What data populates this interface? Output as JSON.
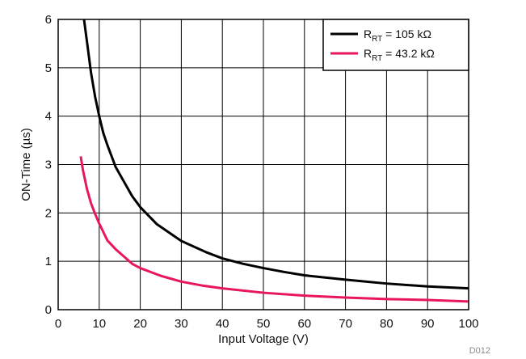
{
  "chart_data": {
    "type": "line",
    "xlabel": "Input Voltage (V)",
    "ylabel": "ON-Time (µs)",
    "xlim": [
      0,
      100
    ],
    "ylim": [
      0,
      6
    ],
    "x_ticks": [
      0,
      10,
      20,
      30,
      40,
      50,
      60,
      70,
      80,
      90,
      100
    ],
    "y_ticks": [
      0,
      1,
      2,
      3,
      4,
      5,
      6
    ],
    "grid": true,
    "legend_position": "top-right",
    "series": [
      {
        "name": "R_RT = 105 kΩ",
        "legend": {
          "main": "R",
          "sub": "RT",
          "rest": " = 105 kΩ"
        },
        "color": "#000000",
        "x": [
          6.3,
          7,
          8,
          9,
          10,
          11,
          12,
          14,
          16,
          18,
          20,
          24,
          30,
          36,
          40,
          45,
          50,
          55,
          60,
          70,
          80,
          90,
          100
        ],
        "y": [
          6.0,
          5.55,
          4.9,
          4.4,
          4.0,
          3.65,
          3.4,
          2.95,
          2.65,
          2.35,
          2.12,
          1.77,
          1.42,
          1.19,
          1.06,
          0.95,
          0.86,
          0.78,
          0.71,
          0.62,
          0.54,
          0.48,
          0.44
        ]
      },
      {
        "name": "R_RT = 43.2 kΩ",
        "legend": {
          "main": "R",
          "sub": "RT",
          "rest": " = 43.2 kΩ"
        },
        "color": "#e8175d",
        "x": [
          5.5,
          6,
          7,
          8,
          9,
          10,
          12,
          14,
          16,
          18,
          20,
          25,
          30,
          35,
          40,
          50,
          60,
          70,
          80,
          90,
          100
        ],
        "y": [
          3.17,
          2.9,
          2.5,
          2.2,
          1.98,
          1.78,
          1.43,
          1.25,
          1.1,
          0.95,
          0.86,
          0.7,
          0.58,
          0.5,
          0.44,
          0.35,
          0.29,
          0.25,
          0.22,
          0.2,
          0.17
        ]
      }
    ]
  },
  "figure_code": "D012"
}
